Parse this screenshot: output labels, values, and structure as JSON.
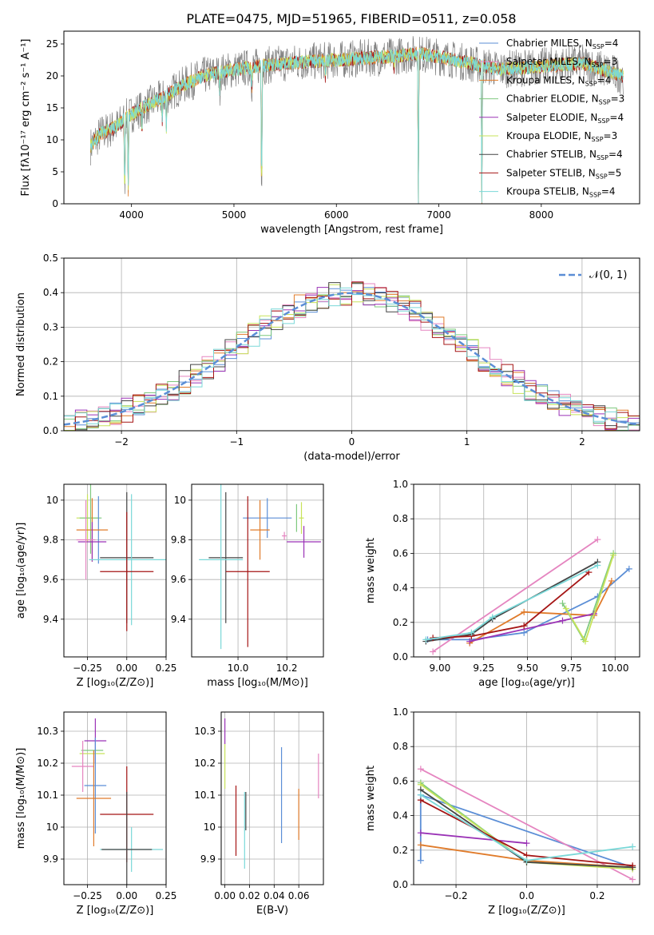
{
  "figure_title": "PLATE=0475, MJD=51965, FIBERID=0511, z=0.058",
  "colors": {
    "CM": "#1f77b4",
    "SM": "#e377c2",
    "KM": "#ff7f0e",
    "CE": "#2ca02c",
    "SE": "#9467bd",
    "KE": "#bcbd22",
    "CS": "#555555",
    "SS": "#b22222",
    "KS": "#17becf",
    "c_cm": "#5b8ed6",
    "c_sm": "#e585c0",
    "c_km": "#e07b2a",
    "c_ce": "#7fc97f",
    "c_se": "#9a32b6",
    "c_ke": "#c7e35a",
    "c_cs": "#444444",
    "c_ss": "#a51515",
    "c_ks": "#7ad8d8",
    "normal": "#5b8ed6",
    "data_grey": "#808080"
  },
  "legend_top": [
    {
      "key": "c_cm",
      "text": "Chabrier MILES, N",
      "sub": "SSP",
      "tail": "=4"
    },
    {
      "key": "c_sm",
      "text": "Salpeter MILES, N",
      "sub": "SSP",
      "tail": "=3"
    },
    {
      "key": "c_km",
      "text": "Kroupa MILES, N",
      "sub": "SSP",
      "tail": "=4"
    },
    {
      "key": "c_ce",
      "text": "Chabrier ELODIE, N",
      "sub": "SSP",
      "tail": "=3"
    },
    {
      "key": "c_se",
      "text": "Salpeter ELODIE, N",
      "sub": "SSP",
      "tail": "=4"
    },
    {
      "key": "c_ke",
      "text": "Kroupa ELODIE, N",
      "sub": "SSP",
      "tail": "=3"
    },
    {
      "key": "c_cs",
      "text": "Chabrier STELIB, N",
      "sub": "SSP",
      "tail": "=4"
    },
    {
      "key": "c_ss",
      "text": "Salpeter STELIB, N",
      "sub": "SSP",
      "tail": "=5"
    },
    {
      "key": "c_ks",
      "text": "Kroupa STELIB, N",
      "sub": "SSP",
      "tail": "=4"
    }
  ],
  "chart_data": [
    {
      "id": "spectrum",
      "type": "line",
      "xlabel": "wavelength [Angstrom, rest frame]",
      "ylabel": "Flux [fλ10⁻¹⁷ erg cm⁻² s⁻¹ A⁻¹]",
      "xlim": [
        3340,
        8960
      ],
      "ylim": [
        0,
        27
      ],
      "xticks": [
        4000,
        5000,
        6000,
        7000,
        8000
      ],
      "yticks": [
        0,
        5,
        10,
        15,
        20,
        25
      ],
      "continuum": [
        [
          3600,
          9
        ],
        [
          3700,
          11
        ],
        [
          3850,
          12
        ],
        [
          3950,
          13.5
        ],
        [
          4100,
          15
        ],
        [
          4300,
          16.5
        ],
        [
          4500,
          18.5
        ],
        [
          4700,
          20
        ],
        [
          5000,
          21
        ],
        [
          5500,
          22
        ],
        [
          6000,
          22.5
        ],
        [
          6500,
          23
        ],
        [
          6800,
          23.5
        ],
        [
          7000,
          23
        ],
        [
          7300,
          22
        ],
        [
          7600,
          21
        ],
        [
          8000,
          21.5
        ],
        [
          8400,
          22
        ],
        [
          8800,
          20
        ]
      ],
      "dips": [
        [
          3934,
          1
        ],
        [
          3968,
          2
        ],
        [
          4102,
          11
        ],
        [
          4300,
          13
        ],
        [
          4340,
          12
        ],
        [
          4861,
          17
        ],
        [
          5175,
          18
        ],
        [
          5270,
          0
        ],
        [
          5893,
          19
        ],
        [
          6563,
          21
        ],
        [
          6800,
          0
        ],
        [
          7420,
          0
        ]
      ]
    },
    {
      "id": "residuals",
      "type": "histogram",
      "xlabel": "(data-model)/error",
      "ylabel": "Normed distribution",
      "xlim": [
        -2.5,
        2.5
      ],
      "ylim": [
        0,
        0.5
      ],
      "xticks": [
        -2,
        -1,
        0,
        1,
        2
      ],
      "yticks": [
        0.0,
        0.1,
        0.2,
        0.3,
        0.4,
        0.5
      ],
      "legend": "𝒩(0, 1)"
    },
    {
      "id": "age_vs_Z",
      "type": "scatter",
      "xlabel": "Z [log₁₀(Z/Z⊙)]",
      "ylabel": "age  [log₁₀(age/yr)]",
      "xlim": [
        -0.4,
        0.25
      ],
      "ylim": [
        9.21,
        10.08
      ],
      "xticks": [
        -0.25,
        0.0,
        0.25
      ],
      "xticklabels": [
        "−0.25",
        "0.00",
        "0.25"
      ],
      "yticks": [
        9.4,
        9.6,
        9.8,
        10.0
      ],
      "points": [
        {
          "key": "c_ke",
          "x": -0.25,
          "y": 9.91,
          "xe": 0.07,
          "ye": 0.12
        },
        {
          "key": "c_ce",
          "x": -0.23,
          "y": 9.91,
          "xe": 0.07,
          "ye": 0.18
        },
        {
          "key": "c_cm",
          "x": -0.18,
          "y": 9.85,
          "xe": 0.0,
          "ye": 0.17
        },
        {
          "key": "c_km",
          "x": -0.22,
          "y": 9.85,
          "xe": 0.1,
          "ye": 0.16
        },
        {
          "key": "c_se",
          "x": -0.22,
          "y": 9.79,
          "xe": 0.09,
          "ye": 0.1
        },
        {
          "key": "c_sm",
          "x": -0.26,
          "y": 9.8,
          "xe": 0.06,
          "ye": 0.2
        },
        {
          "key": "c_cs",
          "x": 0.0,
          "y": 9.71,
          "xe": 0.17,
          "ye": 0.33
        },
        {
          "key": "c_ks",
          "x": 0.03,
          "y": 9.7,
          "xe": 0.27,
          "ye": 0.33
        },
        {
          "key": "c_ss",
          "x": 0.0,
          "y": 9.64,
          "xe": 0.17,
          "ye": 0.3
        }
      ]
    },
    {
      "id": "age_vs_mass",
      "type": "scatter",
      "xlabel": "mass [log₁₀(M/M⊙)]",
      "xlim": [
        9.81,
        10.35
      ],
      "ylim": [
        9.21,
        10.08
      ],
      "xticks": [
        10.0,
        10.2
      ],
      "xticklabels": [
        "10.0",
        "10.2"
      ],
      "yticks": [
        9.4,
        9.6,
        9.8,
        10.0
      ],
      "points": [
        {
          "key": "c_ce",
          "x": 10.24,
          "y": 9.91,
          "xe": 0.0,
          "ye": 0.07
        },
        {
          "key": "c_ke",
          "x": 10.26,
          "y": 9.91,
          "xe": 0.01,
          "ye": 0.08
        },
        {
          "key": "c_cm",
          "x": 10.12,
          "y": 9.91,
          "xe": 0.1,
          "ye": 0.1
        },
        {
          "key": "c_km",
          "x": 10.09,
          "y": 9.85,
          "xe": 0.04,
          "ye": 0.15
        },
        {
          "key": "c_se",
          "x": 10.27,
          "y": 9.79,
          "xe": 0.07,
          "ye": 0.08
        },
        {
          "key": "c_cs",
          "x": 9.95,
          "y": 9.71,
          "xe": 0.07,
          "ye": 0.33
        },
        {
          "key": "c_ks",
          "x": 9.93,
          "y": 9.7,
          "xe": 0.09,
          "ye": 0.45
        },
        {
          "key": "c_ss",
          "x": 10.04,
          "y": 9.64,
          "xe": 0.09,
          "ye": 0.38
        },
        {
          "key": "c_sm",
          "x": 10.19,
          "y": 9.82,
          "xe": 0.01,
          "ye": 0.02
        }
      ]
    },
    {
      "id": "weight_vs_age",
      "type": "line",
      "xlabel": "age  [log₁₀(age/yr)]",
      "ylabel": "mass weight",
      "xlim": [
        8.85,
        10.14
      ],
      "ylim": [
        0,
        1
      ],
      "xticks": [
        9.0,
        9.25,
        9.5,
        9.75,
        10.0
      ],
      "xticklabels": [
        "9.00",
        "9.25",
        "9.50",
        "9.75",
        "10.00"
      ],
      "yticks": [
        0.0,
        0.2,
        0.4,
        0.6,
        0.8,
        1.0
      ],
      "series": [
        {
          "key": "c_cm",
          "x": [
            8.93,
            9.18,
            9.48,
            9.9,
            10.08
          ],
          "y": [
            0.1,
            0.1,
            0.14,
            0.35,
            0.51
          ]
        },
        {
          "key": "c_sm",
          "x": [
            8.96,
            9.9
          ],
          "y": [
            0.03,
            0.68
          ]
        },
        {
          "key": "c_km",
          "x": [
            9.17,
            9.48,
            9.88,
            9.98
          ],
          "y": [
            0.08,
            0.26,
            0.24,
            0.44
          ]
        },
        {
          "key": "c_ce",
          "x": [
            9.7,
            9.82,
            9.99
          ],
          "y": [
            0.31,
            0.1,
            0.6
          ]
        },
        {
          "key": "c_se",
          "x": [
            9.17,
            9.7,
            9.88
          ],
          "y": [
            0.09,
            0.21,
            0.25
          ]
        },
        {
          "key": "c_ke",
          "x": [
            9.72,
            9.83,
            9.99
          ],
          "y": [
            0.28,
            0.09,
            0.59
          ]
        },
        {
          "key": "c_cs",
          "x": [
            8.92,
            9.18,
            9.3,
            9.9
          ],
          "y": [
            0.09,
            0.13,
            0.22,
            0.55
          ]
        },
        {
          "key": "c_ss",
          "x": [
            8.96,
            9.18,
            9.48,
            9.85
          ],
          "y": [
            0.11,
            0.12,
            0.18,
            0.49
          ]
        },
        {
          "key": "c_ks",
          "x": [
            8.92,
            9.18,
            9.3,
            9.9
          ],
          "y": [
            0.1,
            0.14,
            0.23,
            0.53
          ]
        }
      ]
    },
    {
      "id": "mass_vs_Z",
      "type": "scatter",
      "xlabel": "Z [log₁₀(Z/Z⊙)]",
      "ylabel": "mass [log₁₀(M/M⊙)]",
      "xlim": [
        -0.4,
        0.25
      ],
      "ylim": [
        9.82,
        10.36
      ],
      "xticks": [
        -0.25,
        0.0,
        0.25
      ],
      "xticklabels": [
        "−0.25",
        "0.00",
        "0.25"
      ],
      "yticks": [
        9.9,
        10.0,
        10.1,
        10.2,
        10.3
      ],
      "points": [
        {
          "key": "c_se",
          "x": -0.2,
          "y": 10.27,
          "xe": 0.07,
          "ye": 0.07
        },
        {
          "key": "c_ce",
          "x": -0.22,
          "y": 10.24,
          "xe": 0.07,
          "ye": 0.0
        },
        {
          "key": "c_ke",
          "x": -0.22,
          "y": 10.23,
          "xe": 0.08,
          "ye": 0.0
        },
        {
          "key": "c_sm",
          "x": -0.28,
          "y": 10.19,
          "xe": 0.07,
          "ye": 0.08
        },
        {
          "key": "c_cm",
          "x": -0.2,
          "y": 10.13,
          "xe": 0.07,
          "ye": 0.15
        },
        {
          "key": "c_km",
          "x": -0.21,
          "y": 10.09,
          "xe": 0.11,
          "ye": 0.15
        },
        {
          "key": "c_ss",
          "x": 0.0,
          "y": 10.04,
          "xe": 0.17,
          "ye": 0.15
        },
        {
          "key": "c_ks",
          "x": 0.03,
          "y": 9.93,
          "xe": 0.2,
          "ye": 0.07
        },
        {
          "key": "c_cs",
          "x": 0.0,
          "y": 9.93,
          "xe": 0.16,
          "ye": 0.18
        }
      ]
    },
    {
      "id": "mass_vs_ebv",
      "type": "scatter",
      "xlabel": "E(B-V)",
      "xlim": [
        -0.003,
        0.08
      ],
      "ylim": [
        9.82,
        10.36
      ],
      "xticks": [
        0.0,
        0.02,
        0.04,
        0.06
      ],
      "xticklabels": [
        "0.00",
        "0.02",
        "0.04",
        "0.06"
      ],
      "yticks": [
        9.9,
        10.0,
        10.1,
        10.2,
        10.3
      ],
      "points": [
        {
          "key": "c_se",
          "x": 0.0,
          "y": 10.3,
          "xe": 0,
          "ye": 0.04
        },
        {
          "key": "c_ke",
          "x": 0.0,
          "y": 10.19,
          "xe": 0,
          "ye": 0.07
        },
        {
          "key": "c_ss",
          "x": 0.009,
          "y": 10.02,
          "xe": 0,
          "ye": 0.11
        },
        {
          "key": "c_ks",
          "x": 0.016,
          "y": 9.99,
          "xe": 0,
          "ye": 0.12
        },
        {
          "key": "c_cs",
          "x": 0.017,
          "y": 10.05,
          "xe": 0,
          "ye": 0.06
        },
        {
          "key": "c_cm",
          "x": 0.046,
          "y": 10.1,
          "xe": 0,
          "ye": 0.15
        },
        {
          "key": "c_km",
          "x": 0.06,
          "y": 10.04,
          "xe": 0,
          "ye": 0.08
        },
        {
          "key": "c_sm",
          "x": 0.076,
          "y": 10.16,
          "xe": 0,
          "ye": 0.07
        }
      ]
    },
    {
      "id": "weight_vs_Z",
      "type": "line",
      "xlabel": "Z [log₁₀(Z/Z⊙)]",
      "ylabel": "mass weight",
      "xlim": [
        -0.32,
        0.32
      ],
      "ylim": [
        0,
        1
      ],
      "xticks": [
        -0.2,
        0.0,
        0.2
      ],
      "xticklabels": [
        "−0.2",
        "0.0",
        "0.2"
      ],
      "yticks": [
        0.0,
        0.2,
        0.4,
        0.6,
        0.8,
        1.0
      ],
      "series": [
        {
          "key": "c_cm",
          "x": [
            -0.3,
            -0.3,
            0.3
          ],
          "y": [
            0.14,
            0.52,
            0.1
          ]
        },
        {
          "key": "c_sm",
          "x": [
            -0.3,
            0.3
          ],
          "y": [
            0.67,
            0.03
          ]
        },
        {
          "key": "c_km",
          "x": [
            -0.3,
            0.0,
            0.3
          ],
          "y": [
            0.23,
            0.14,
            0.1
          ]
        },
        {
          "key": "c_ce",
          "x": [
            -0.3,
            0.0,
            0.3
          ],
          "y": [
            0.59,
            0.13,
            0.1
          ]
        },
        {
          "key": "c_se",
          "x": [
            -0.3,
            0.0
          ],
          "y": [
            0.3,
            0.24
          ]
        },
        {
          "key": "c_ke",
          "x": [
            -0.3,
            0.0,
            0.3
          ],
          "y": [
            0.58,
            0.13,
            0.09
          ]
        },
        {
          "key": "c_cs",
          "x": [
            -0.3,
            0.0,
            0.3
          ],
          "y": [
            0.55,
            0.13,
            0.1
          ]
        },
        {
          "key": "c_ss",
          "x": [
            -0.3,
            0.0,
            0.3
          ],
          "y": [
            0.49,
            0.17,
            0.11
          ]
        },
        {
          "key": "c_ks",
          "x": [
            -0.3,
            0.0,
            0.3
          ],
          "y": [
            0.52,
            0.14,
            0.22
          ]
        }
      ]
    }
  ]
}
